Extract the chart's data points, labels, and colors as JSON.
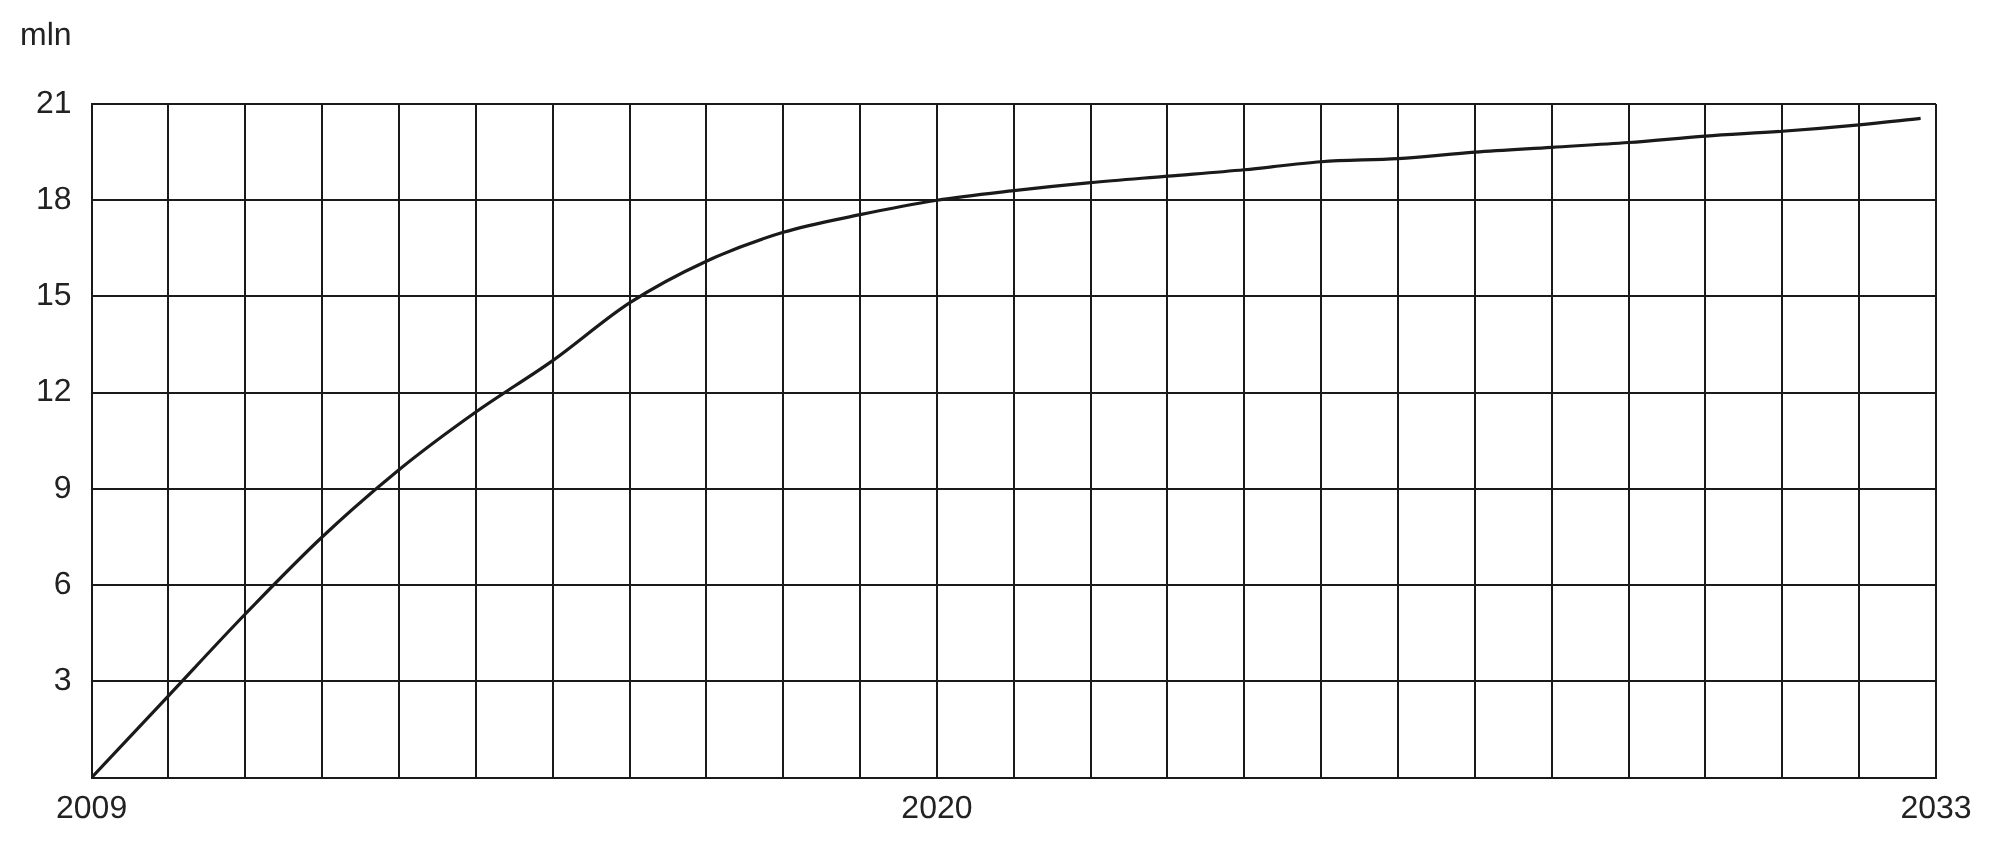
{
  "chart_data": {
    "type": "line",
    "ylabel": "mln",
    "series": [
      {
        "color": "#1a1a1a",
        "x": [
          2009,
          2010,
          2011,
          2012,
          2013,
          2014,
          2015,
          2016,
          2017,
          2018,
          2019,
          2020,
          2021,
          2022,
          2023,
          2024,
          2025,
          2026,
          2027,
          2028,
          2029,
          2030,
          2031,
          2032,
          2032.8
        ],
        "values": [
          0,
          2.55,
          5.1,
          7.5,
          9.6,
          11.4,
          13.0,
          14.8,
          16.1,
          17.0,
          17.55,
          18.0,
          18.3,
          18.55,
          18.75,
          18.95,
          19.2,
          19.3,
          19.5,
          19.65,
          19.8,
          20.0,
          20.15,
          20.35,
          20.55
        ]
      }
    ],
    "xlim": [
      2009,
      2033
    ],
    "xticks": [
      2009,
      {
        "value": 2010,
        "label": null
      },
      {
        "value": 2011,
        "label": null
      },
      {
        "value": 2012,
        "label": null
      },
      {
        "value": 2013,
        "label": null
      },
      {
        "value": 2014,
        "label": null
      },
      {
        "value": 2015,
        "label": null
      },
      {
        "value": 2016,
        "label": null
      },
      {
        "value": 2017,
        "label": null
      },
      {
        "value": 2018,
        "label": null
      },
      {
        "value": 2019,
        "label": null
      },
      2020,
      {
        "value": 2021,
        "label": null
      },
      {
        "value": 2022,
        "label": null
      },
      {
        "value": 2023,
        "label": null
      },
      {
        "value": 2024,
        "label": null
      },
      {
        "value": 2025,
        "label": null
      },
      {
        "value": 2026,
        "label": null
      },
      {
        "value": 2027,
        "label": null
      },
      {
        "value": 2028,
        "label": null
      },
      {
        "value": 2029,
        "label": null
      },
      {
        "value": 2030,
        "label": null
      },
      {
        "value": 2031,
        "label": null
      },
      {
        "value": 2032,
        "label": null
      },
      2033
    ],
    "ylim": [
      0,
      21
    ],
    "yticks": [
      {
        "value": 0,
        "label": null
      },
      3,
      6,
      9,
      12,
      15,
      18,
      21
    ],
    "grid": true,
    "legend": false,
    "marker": "none",
    "line_style": "solid"
  }
}
